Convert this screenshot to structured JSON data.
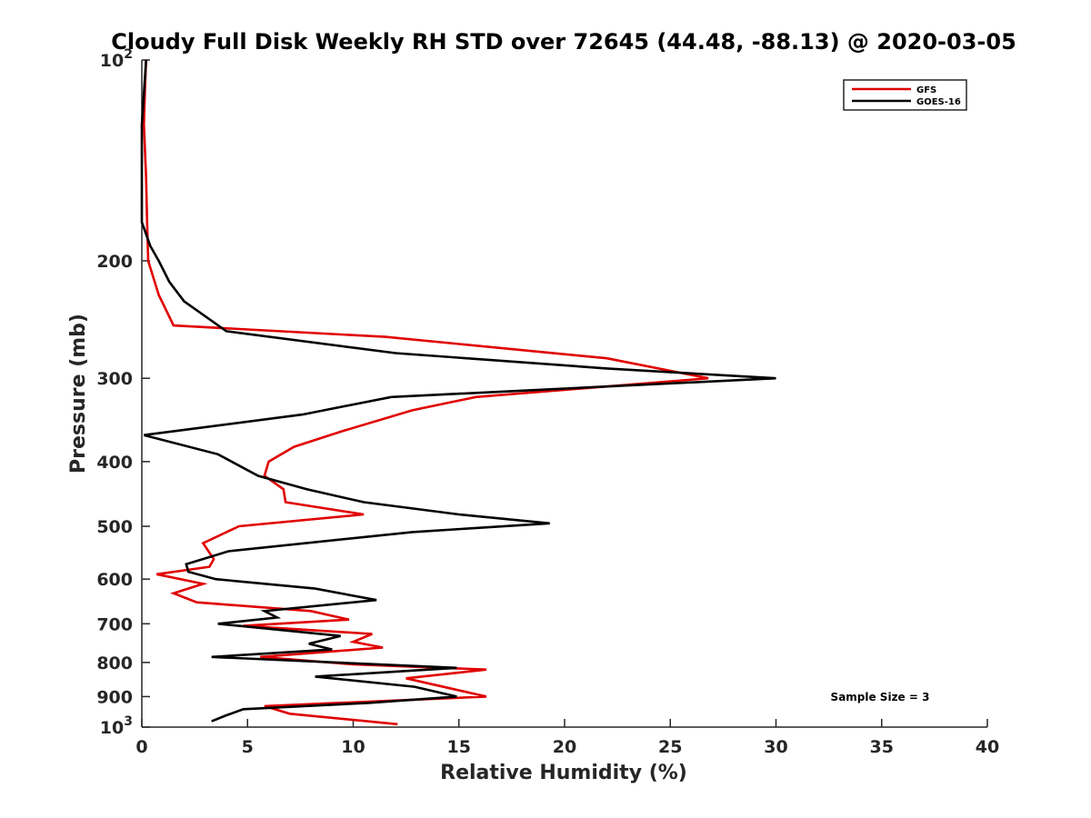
{
  "chart_data": {
    "type": "line",
    "title": "Cloudy Full Disk Weekly RH STD over 72645 (44.48, -88.13) @ 2020-03-05",
    "xlabel": "Relative Humidity (%)",
    "ylabel": "Pressure (mb)",
    "xlim": [
      0,
      40
    ],
    "ylim": [
      100,
      1000
    ],
    "y_scale": "log",
    "y_reversed": true,
    "x_ticks": [
      "0",
      "5",
      "10",
      "15",
      "20",
      "25",
      "30",
      "35",
      "40"
    ],
    "x_tick_values": [
      0,
      5,
      10,
      15,
      20,
      25,
      30,
      35,
      40
    ],
    "y_ticks": [
      {
        "value": 100,
        "base": "10",
        "exp": "2",
        "label": ""
      },
      {
        "value": 200,
        "label": "200"
      },
      {
        "value": 300,
        "label": "300"
      },
      {
        "value": 400,
        "label": "400"
      },
      {
        "value": 500,
        "label": "500"
      },
      {
        "value": 600,
        "label": "600"
      },
      {
        "value": 700,
        "label": "700"
      },
      {
        "value": 800,
        "label": "800"
      },
      {
        "value": 900,
        "label": "900"
      },
      {
        "value": 1000,
        "base": "10",
        "exp": "3",
        "label": ""
      }
    ],
    "legend_position": "top-right",
    "grid": false,
    "annotation": "Sample Size = 3",
    "series": [
      {
        "name": "GFS",
        "color": "#e00000",
        "points": [
          [
            0.2,
            100
          ],
          [
            0.15,
            110
          ],
          [
            0.1,
            125
          ],
          [
            0.2,
            150
          ],
          [
            0.25,
            175
          ],
          [
            0.3,
            200
          ],
          [
            0.8,
            225
          ],
          [
            1.5,
            250
          ],
          [
            11.5,
            260
          ],
          [
            22.0,
            280
          ],
          [
            26.8,
            300
          ],
          [
            15.8,
            320
          ],
          [
            12.8,
            335
          ],
          [
            9.5,
            360
          ],
          [
            7.2,
            380
          ],
          [
            6.0,
            400
          ],
          [
            5.8,
            420
          ],
          [
            6.7,
            440
          ],
          [
            6.8,
            460
          ],
          [
            10.5,
            480
          ],
          [
            4.6,
            500
          ],
          [
            2.9,
            530
          ],
          [
            3.4,
            560
          ],
          [
            3.2,
            575
          ],
          [
            0.7,
            590
          ],
          [
            2.9,
            610
          ],
          [
            1.5,
            630
          ],
          [
            2.6,
            650
          ],
          [
            8.0,
            670
          ],
          [
            9.8,
            690
          ],
          [
            4.8,
            705
          ],
          [
            10.9,
            725
          ],
          [
            10.0,
            745
          ],
          [
            11.4,
            760
          ],
          [
            5.6,
            785
          ],
          [
            10.0,
            805
          ],
          [
            16.3,
            820
          ],
          [
            12.5,
            845
          ],
          [
            16.3,
            900
          ],
          [
            5.8,
            930
          ],
          [
            7.0,
            955
          ],
          [
            12.1,
            990
          ]
        ]
      },
      {
        "name": "GOES-16",
        "color": "#000000",
        "points": [
          [
            0.2,
            100
          ],
          [
            0.0,
            125
          ],
          [
            0.0,
            175
          ],
          [
            0.4,
            190
          ],
          [
            0.8,
            200
          ],
          [
            1.3,
            215
          ],
          [
            2.0,
            230
          ],
          [
            4.0,
            255
          ],
          [
            12.0,
            275
          ],
          [
            22.0,
            290
          ],
          [
            30.0,
            300
          ],
          [
            11.8,
            320
          ],
          [
            7.6,
            340
          ],
          [
            0.1,
            365
          ],
          [
            3.6,
            390
          ],
          [
            5.5,
            420
          ],
          [
            7.8,
            440
          ],
          [
            10.5,
            460
          ],
          [
            15.0,
            480
          ],
          [
            19.3,
            495
          ],
          [
            12.8,
            510
          ],
          [
            4.1,
            545
          ],
          [
            2.1,
            570
          ],
          [
            2.2,
            585
          ],
          [
            3.5,
            600
          ],
          [
            8.2,
            620
          ],
          [
            11.1,
            645
          ],
          [
            5.8,
            670
          ],
          [
            6.4,
            685
          ],
          [
            3.6,
            700
          ],
          [
            9.4,
            730
          ],
          [
            7.9,
            750
          ],
          [
            9.0,
            765
          ],
          [
            3.3,
            785
          ],
          [
            14.9,
            815
          ],
          [
            8.2,
            840
          ],
          [
            12.9,
            870
          ],
          [
            14.9,
            900
          ],
          [
            10.7,
            920
          ],
          [
            4.8,
            940
          ],
          [
            4.0,
            960
          ],
          [
            3.3,
            980
          ]
        ]
      }
    ]
  }
}
